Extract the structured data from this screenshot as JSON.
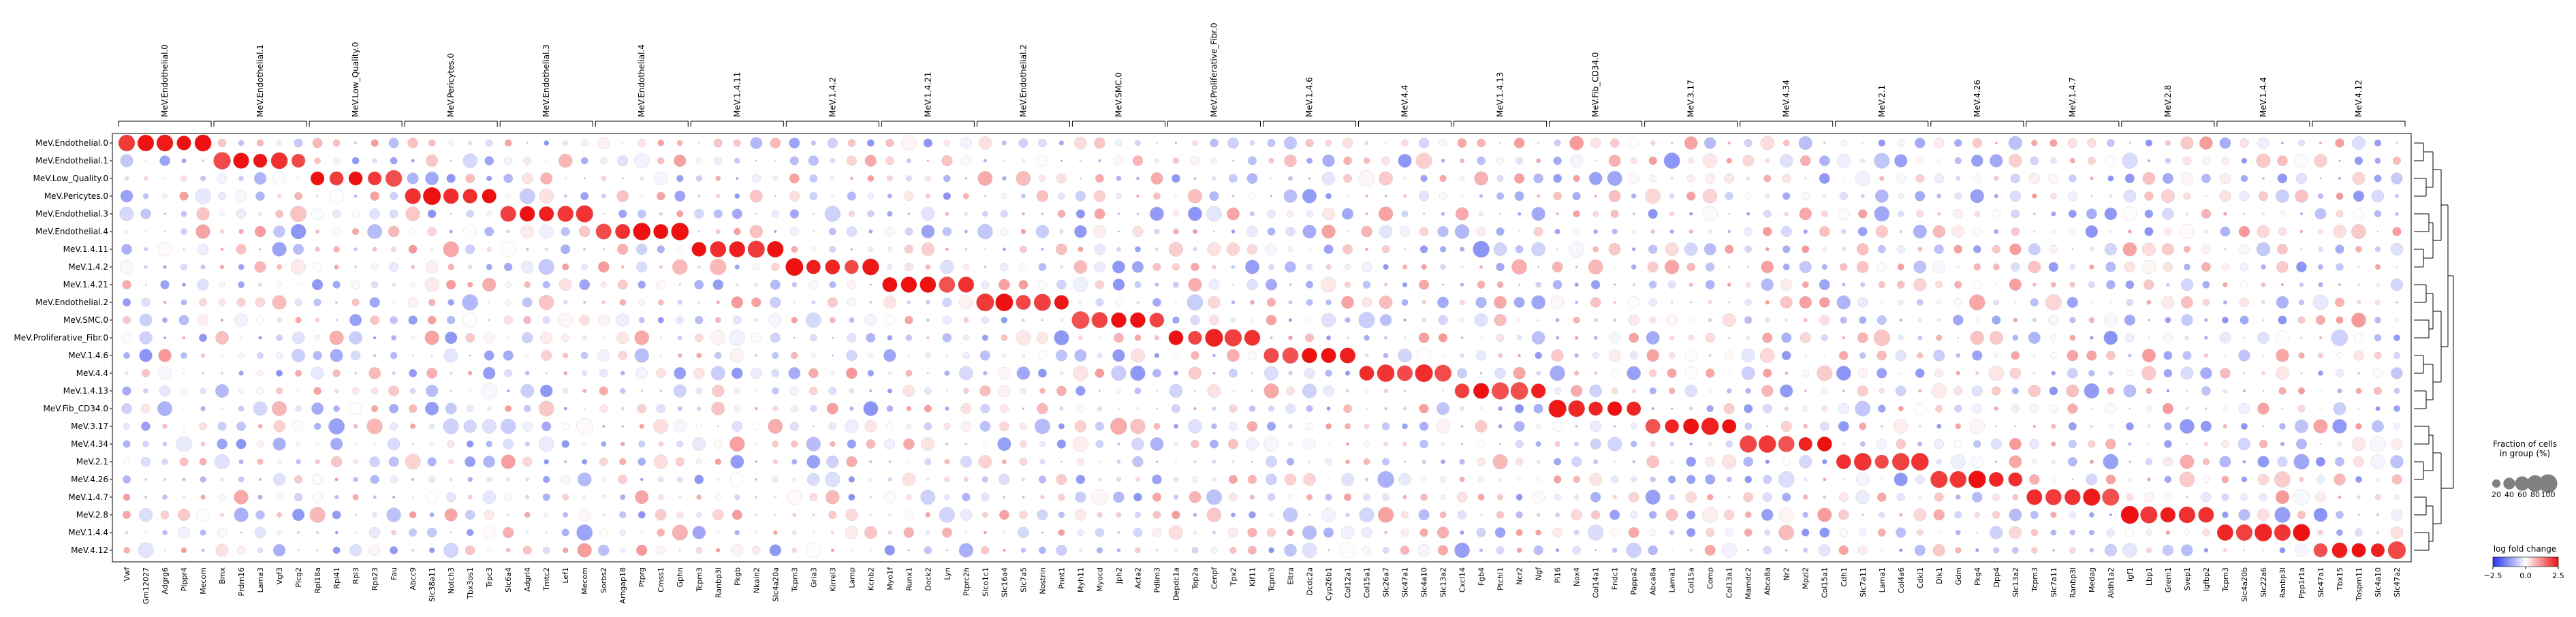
{
  "chart_data": {
    "type": "dotplot",
    "title": "",
    "rows": [
      "MeV.Endothelial.0",
      "MeV.Endothelial.1",
      "MeV.Low_Quality.0",
      "MeV.Pericytes.0",
      "MeV.Endothelial.3",
      "MeV.Endothelial.4",
      "MeV.1.4.11",
      "MeV.1.4.2",
      "MeV.1.4.21",
      "MeV.Endothelial.2",
      "MeV.SMC.0",
      "MeV.Proliferative_Fibr.0",
      "MeV.1.4.6",
      "MeV.4.4",
      "MeV.1.4.13",
      "MeV.Fib_CD34.0",
      "MeV.3.17",
      "MeV.4.34",
      "MeV.2.1",
      "MeV.4.26",
      "MeV.1.4.7",
      "MeV.2.8",
      "MeV.1.4.4",
      "MeV.4.12"
    ],
    "groups": [
      {
        "label": "MeV.Endothelial.0",
        "genes": [
          "Vwf",
          "Gm12027",
          "Adgrg6",
          "Plppr4",
          "Mecom"
        ]
      },
      {
        "label": "MeV.Endothelial.1",
        "genes": [
          "Bmx",
          "Prdm16",
          "Lama3",
          "Vgf3",
          "Plcg2"
        ]
      },
      {
        "label": "MeV.Low_Quality.0",
        "genes": [
          "Rpl18a",
          "Rpl41",
          "Rpl3",
          "Rps23",
          "Fau"
        ]
      },
      {
        "label": "MeV.Pericytes.0",
        "genes": [
          "Abcc9",
          "Slc38a11",
          "Notch3",
          "Tbx3os1",
          "Trpc3"
        ]
      },
      {
        "label": "MeV.Endothelial.3",
        "genes": [
          "Slc6a4",
          "Adgrl4",
          "Tmtc2",
          "Lef1",
          "Mecom"
        ]
      },
      {
        "label": "MeV.Endothelial.4",
        "genes": [
          "Sorbs2",
          "Arhgap18",
          "Ptprg",
          "Cmss1",
          "Gphn"
        ]
      },
      {
        "label": "MeV.1.4.11",
        "genes": [
          "Tcpm3",
          "Ranbp3l",
          "Pkgb",
          "Nkain2",
          "Slc4a20a"
        ]
      },
      {
        "label": "MeV.1.4.2",
        "genes": [
          "Tcpm3",
          "Gria3",
          "Kirrel3",
          "Lamp",
          "Kcnb2"
        ]
      },
      {
        "label": "MeV.1.4.21",
        "genes": [
          "Myo1f",
          "Runx1",
          "Dock2",
          "Lyn",
          "Ptprc2h"
        ]
      },
      {
        "label": "MeV.Endothelial.2",
        "genes": [
          "Slco1c1",
          "Slc16a4",
          "Slc7a5",
          "Nostrin",
          "Pnnt1"
        ]
      },
      {
        "label": "MeV.SMC.0",
        "genes": [
          "Myh11",
          "Myocd",
          "Jph2",
          "Acta2",
          "Pdlim3"
        ]
      },
      {
        "label": "MeV.Proliferative_Fibr.0",
        "genes": [
          "Depdc1a",
          "Top2a",
          "Cenpf",
          "Tpx2",
          "Kif11"
        ]
      },
      {
        "label": "MeV.1.4.6",
        "genes": [
          "Tcpm3",
          "Eltra",
          "Dcdc2a",
          "Cyp26b1",
          "Col12a1"
        ]
      },
      {
        "label": "MeV.4.4",
        "genes": [
          "Col15a1",
          "Slc26a7",
          "Slc47a1",
          "Slc4a10",
          "Slc13a2"
        ]
      },
      {
        "label": "MeV.1.4.13",
        "genes": [
          "Cxcl14",
          "Fgb4",
          "Ptchl1",
          "Ncr2",
          "Ngf"
        ]
      },
      {
        "label": "MeV.Fib_CD34.0",
        "genes": [
          "Pi16",
          "Nox4",
          "Col14a1",
          "Fndc1",
          "Pappa2"
        ]
      },
      {
        "label": "MeV.3.17",
        "genes": [
          "Abca8a",
          "Lama1",
          "Col15a",
          "Comp",
          "Col13a1"
        ]
      },
      {
        "label": "MeV.4.34",
        "genes": [
          "Mamdc2",
          "Abca8a",
          "Nr2",
          "Mpzl2",
          "Col15a1"
        ]
      },
      {
        "label": "MeV.2.1",
        "genes": [
          "Cdh1",
          "Slc7a11",
          "Lama1",
          "Col4a6",
          "Cdkl1"
        ]
      },
      {
        "label": "MeV.4.26",
        "genes": [
          "Dlk1",
          "Gdm",
          "Pkg4",
          "Dpp4",
          "Slc13a2"
        ]
      },
      {
        "label": "MeV.1.4.7",
        "genes": [
          "Tcpm3",
          "Slc7a11",
          "Ranbp3l",
          "Medag",
          "Aldh1a2"
        ]
      },
      {
        "label": "MeV.2.8",
        "genes": [
          "Igf1",
          "Lbp1",
          "Grem1",
          "Svep1",
          "Igfbp2"
        ]
      },
      {
        "label": "MeV.1.4.4",
        "genes": [
          "Tcpm3",
          "Slc4a20b",
          "Slc22a6",
          "Ranbp3l",
          "Ppp1r1a"
        ]
      },
      {
        "label": "MeV.4.12",
        "genes": [
          "Slc47a1",
          "Tbx15",
          "Tospm11",
          "Slc4a10",
          "Slc47a2"
        ]
      }
    ],
    "row_group_map": [
      0,
      1,
      2,
      3,
      4,
      5,
      6,
      7,
      8,
      9,
      10,
      11,
      12,
      13,
      14,
      15,
      16,
      17,
      18,
      19,
      20,
      21,
      22,
      23
    ],
    "color_scale": {
      "label": "log fold change",
      "min": -2.5,
      "max": 2.5,
      "ticks": [
        -2.5,
        0.0,
        2.5
      ],
      "low": "#2233ee",
      "mid": "#ffffff",
      "high": "#ee1111"
    },
    "size_legend": {
      "title_line1": "Fraction of cells",
      "title_line2": "in group (%)",
      "values": [
        20,
        40,
        60,
        80,
        100
      ]
    },
    "dendrogram": "right",
    "legend_placement": "right"
  }
}
